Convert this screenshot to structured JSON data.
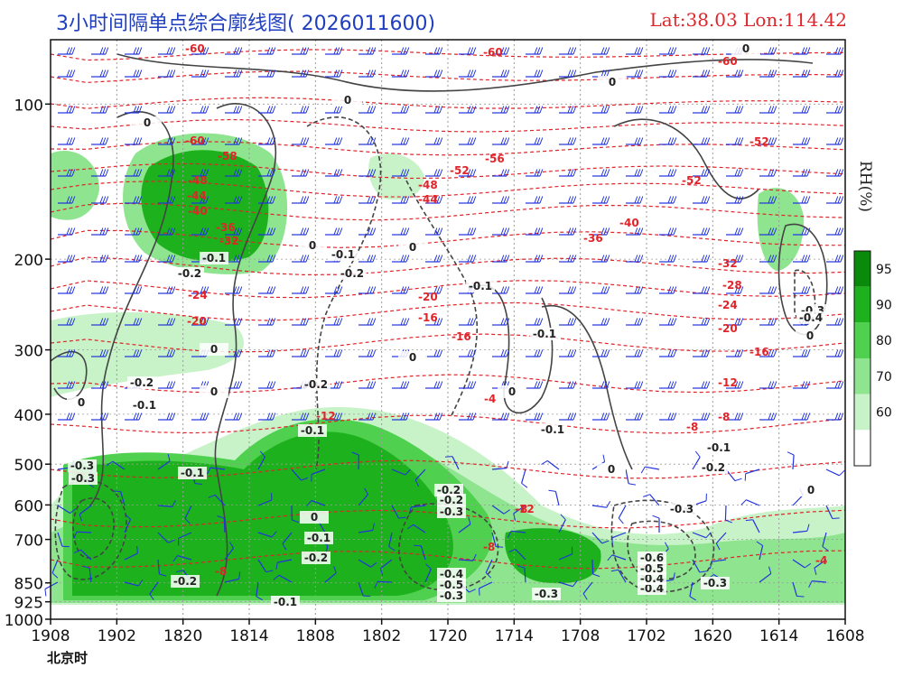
{
  "header": {
    "title": "3小时间隔单点综合廓线图( 2026011600)",
    "latlon": "Lat:38.03  Lon:114.42"
  },
  "footer": {
    "time_label": "北京时"
  },
  "colorbar": {
    "label": "RH(%)",
    "ticks": [
      "95",
      "90",
      "80",
      "70",
      "60"
    ],
    "colors": [
      "#0a8a0a",
      "#1db21d",
      "#4fd04f",
      "#8fe48f",
      "#c8f3c8",
      "#ffffff"
    ]
  },
  "colors": {
    "temperature_contour": "#e0242a",
    "omega_contour": "#444444",
    "wind_barb": "#2233dd",
    "grid": "#9a9a9a"
  },
  "chart_data": {
    "type": "heatmap",
    "title": "3小时间隔单点综合廓线图( 2026011600)",
    "xlabel": "北京时",
    "ylabel": "",
    "x_ticks": [
      "1908",
      "1902",
      "1820",
      "1814",
      "1808",
      "1802",
      "1720",
      "1714",
      "1708",
      "1702",
      "1620",
      "1614",
      "1608"
    ],
    "y_ticks": [
      "100",
      "200",
      "300",
      "400",
      "500",
      "600",
      "700",
      "850",
      "925",
      "1000"
    ],
    "y_scale": "log",
    "grid": true,
    "series": [
      {
        "name": "RH(%)",
        "kind": "filled-contour",
        "levels": [
          60,
          70,
          80,
          90,
          95
        ]
      },
      {
        "kind": "temperature-contour",
        "levels": [
          -60,
          -56,
          -52,
          -48,
          -44,
          -40,
          -36,
          -32,
          -28,
          -24,
          -20,
          -16,
          -12,
          -8,
          -4
        ]
      },
      {
        "kind": "omega-contour",
        "levels": [
          -0.6,
          -0.5,
          -0.4,
          -0.3,
          -0.2,
          -0.1,
          0
        ]
      },
      {
        "kind": "wind-barbs"
      }
    ],
    "temp_labels": [
      "-60",
      "-60",
      "-60",
      "-60",
      "-56",
      "-58",
      "-52",
      "-52",
      "-52",
      "-48",
      "-48",
      "-44",
      "-44",
      "-40",
      "-40",
      "-36",
      "-36",
      "-32",
      "-32",
      "-28",
      "-24",
      "-24",
      "-20",
      "-20",
      "-20",
      "-16",
      "-16",
      "-16",
      "-12",
      "-12",
      "-8",
      "-8",
      "-8",
      "-8",
      "-8",
      "-12",
      "-4",
      "-4"
    ],
    "omega_labels": [
      "0",
      "0",
      "0",
      "0",
      "0",
      "0",
      "0",
      "0",
      "0",
      "0",
      "0",
      "0",
      "0",
      "0",
      "-0.1",
      "-0.1",
      "-0.1",
      "-0.1",
      "-0.1",
      "-0.1",
      "-0.1",
      "-0.1",
      "-0.1",
      "-0.1",
      "-0.2",
      "-0.2",
      "-0.2",
      "-0.2",
      "-0.2",
      "-0.2",
      "-0.2",
      "-0.2",
      "-0.3",
      "-0.3",
      "-0.3",
      "-0.3",
      "-0.3",
      "-0.3",
      "-0.3",
      "-0.4",
      "-0.4",
      "-0.4",
      "-0.4",
      "-0.5",
      "-0.5",
      "-0.6",
      "-0.3",
      "-0.2",
      "-0.1",
      "0"
    ]
  }
}
